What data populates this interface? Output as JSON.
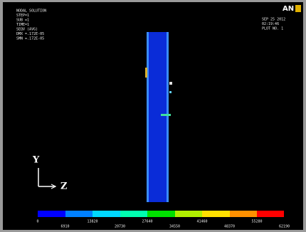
{
  "header": {
    "logo": "AN",
    "info_left": [
      "NODAL SOLUTION",
      "STEP=1",
      "SUB =1",
      "TIME=1",
      "SEQV (AVG)",
      "DMX =.172E-05",
      "SMN =.172E-05"
    ],
    "info_right": [
      "SEP 25 2012",
      "02:19:46",
      "PLOT NO. 1"
    ]
  },
  "triad": {
    "y_label": "Y",
    "z_label": "Z"
  },
  "legend": {
    "labels_top": [
      "0",
      "13820",
      "27640",
      "41460",
      "55280"
    ],
    "labels_bottom": [
      "6910",
      "20730",
      "34550",
      "48370",
      "62190"
    ]
  }
}
